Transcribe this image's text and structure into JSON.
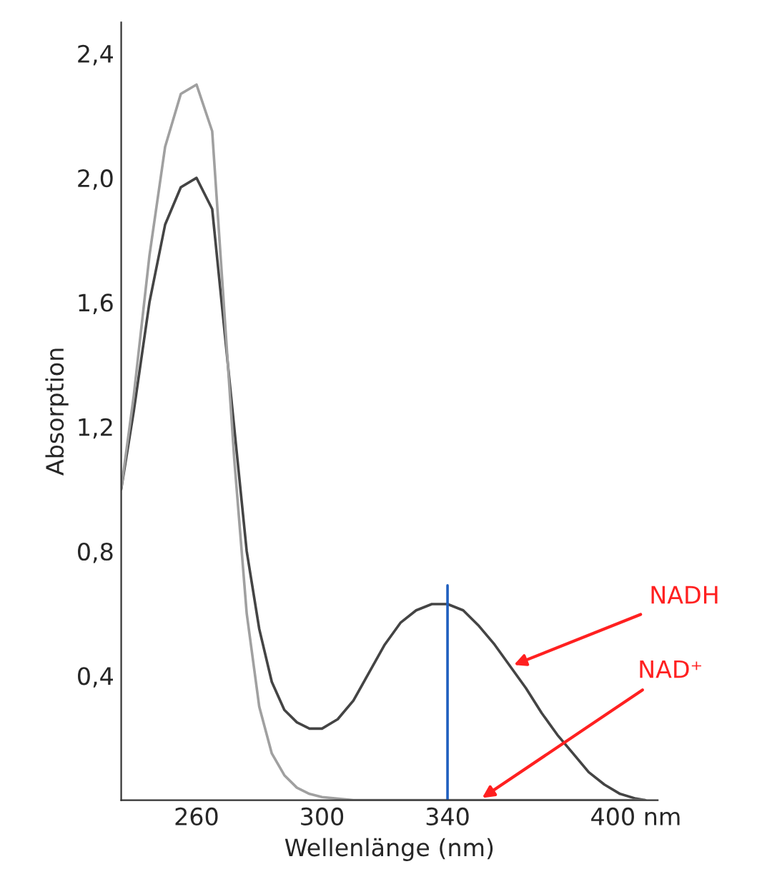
{
  "chart_data": {
    "type": "line",
    "xlabel": "Wellenlänge (nm)",
    "ylabel": "Absorption",
    "xlim": [
      236,
      407
    ],
    "ylim": [
      0,
      2.5
    ],
    "xticks": [
      260,
      300,
      340,
      {
        "value": 400,
        "label": "400 nm"
      }
    ],
    "yticks": [
      {
        "value": 0.4,
        "label": "0,4"
      },
      {
        "value": 0.8,
        "label": "0,8"
      },
      {
        "value": 1.2,
        "label": "1,2"
      },
      {
        "value": 1.6,
        "label": "1,6"
      },
      {
        "value": 2.0,
        "label": "2,0"
      },
      {
        "value": 2.4,
        "label": "2,4"
      }
    ],
    "grid": false,
    "legend": false,
    "series": [
      {
        "color": "#444444",
        "x": [
          236,
          240,
          245,
          250,
          255,
          260,
          265,
          268,
          272,
          276,
          280,
          284,
          288,
          292,
          296,
          300,
          305,
          310,
          315,
          320,
          325,
          330,
          335,
          340,
          345,
          350,
          355,
          360,
          365,
          370,
          375,
          380,
          385,
          390,
          395,
          400,
          403
        ],
        "values": [
          1.0,
          1.25,
          1.6,
          1.85,
          1.97,
          2.0,
          1.9,
          1.6,
          1.2,
          0.8,
          0.55,
          0.38,
          0.29,
          0.25,
          0.23,
          0.23,
          0.26,
          0.32,
          0.41,
          0.5,
          0.57,
          0.61,
          0.63,
          0.63,
          0.61,
          0.56,
          0.5,
          0.43,
          0.36,
          0.28,
          0.21,
          0.15,
          0.09,
          0.05,
          0.02,
          0.005,
          0
        ]
      },
      {
        "color": "#a0a0a0",
        "x": [
          236,
          240,
          245,
          250,
          255,
          260,
          265,
          268,
          272,
          276,
          280,
          284,
          288,
          292,
          296,
          300,
          310,
          350,
          400,
          403
        ],
        "values": [
          1.0,
          1.3,
          1.75,
          2.1,
          2.27,
          2.3,
          2.15,
          1.7,
          1.1,
          0.6,
          0.3,
          0.15,
          0.08,
          0.04,
          0.02,
          0.01,
          0,
          0,
          0,
          0
        ]
      },
      {
        "color": "#1f5fbf",
        "x": [
          340,
          340
        ],
        "values": [
          0,
          0.69
        ]
      }
    ],
    "annotations": [
      {
        "text": "NADH",
        "x": 360,
        "y": 0.43
      },
      {
        "text": "NAD⁺",
        "x": 350,
        "y": 0
      }
    ]
  }
}
